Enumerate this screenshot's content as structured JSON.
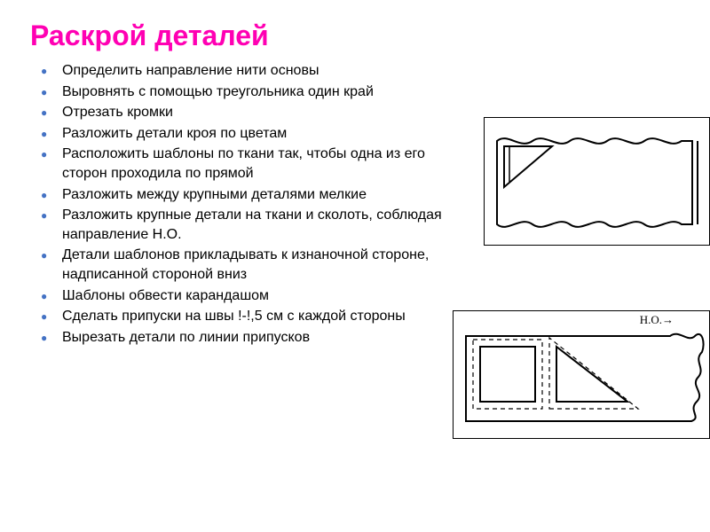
{
  "title": {
    "text": "Раскрой деталей",
    "color": "#ff00b3"
  },
  "bullet_color": "#4472c4",
  "items": [
    "Определить направление нити основы",
    "Выровнять с помощью треугольника один край",
    "Отрезать кромки",
    "Разложить детали кроя по цветам",
    "Расположить шаблоны по ткани так, чтобы одна из его сторон проходила по прямой",
    "Разложить между крупными деталями мелкие",
    "Разложить крупные детали на ткани и сколоть, соблюдая направление Н.О.",
    "Детали шаблонов прикладывать к изнаночной стороне, надписанной стороной вниз",
    "Шаблоны обвести карандашом",
    "Сделать припуски на швы !-!,5 см с каждой стороны",
    "Вырезать детали по линии припусков"
  ],
  "figure2_label": "Н.О.→",
  "diagram_stroke": "#000000",
  "diagram_stroke_width": 2
}
